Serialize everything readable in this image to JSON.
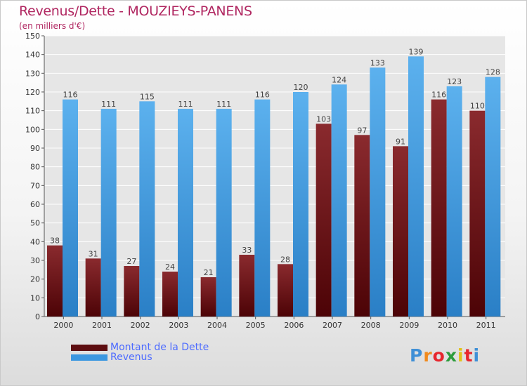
{
  "title": "Revenus/Dette - MOUZIEYS-PANENS",
  "subtitle": "(en milliers d'€)",
  "chart_data": {
    "type": "bar",
    "categories": [
      "2000",
      "2001",
      "2002",
      "2003",
      "2004",
      "2005",
      "2006",
      "2007",
      "2008",
      "2009",
      "2010",
      "2011"
    ],
    "series": [
      {
        "name": "Montant de la Dette",
        "values": [
          38,
          31,
          27,
          24,
          21,
          33,
          28,
          103,
          97,
          91,
          116,
          110
        ],
        "color": "#7a2428"
      },
      {
        "name": "Revenus",
        "values": [
          116,
          111,
          115,
          111,
          111,
          116,
          120,
          124,
          133,
          139,
          123,
          128
        ],
        "color": "#4aa3e6"
      }
    ],
    "ylim": [
      0,
      150
    ],
    "yticks": [
      0,
      10,
      20,
      30,
      40,
      50,
      60,
      70,
      80,
      90,
      100,
      110,
      120,
      130,
      140,
      150
    ],
    "grid": true,
    "data_labels": true,
    "legend_position": "bottom-left"
  },
  "legend": {
    "items": [
      {
        "label": "Montant de la Dette",
        "color": "#5c0d10"
      },
      {
        "label": "Revenus",
        "color": "#3c97e0"
      }
    ]
  },
  "logo": {
    "text": "Proxiti",
    "letter_colors": [
      "#3f8fd6",
      "#f08a1e",
      "#e7262d",
      "#2d9b3c",
      "#e2c21a",
      "#e7262d",
      "#3f8fd6"
    ]
  }
}
